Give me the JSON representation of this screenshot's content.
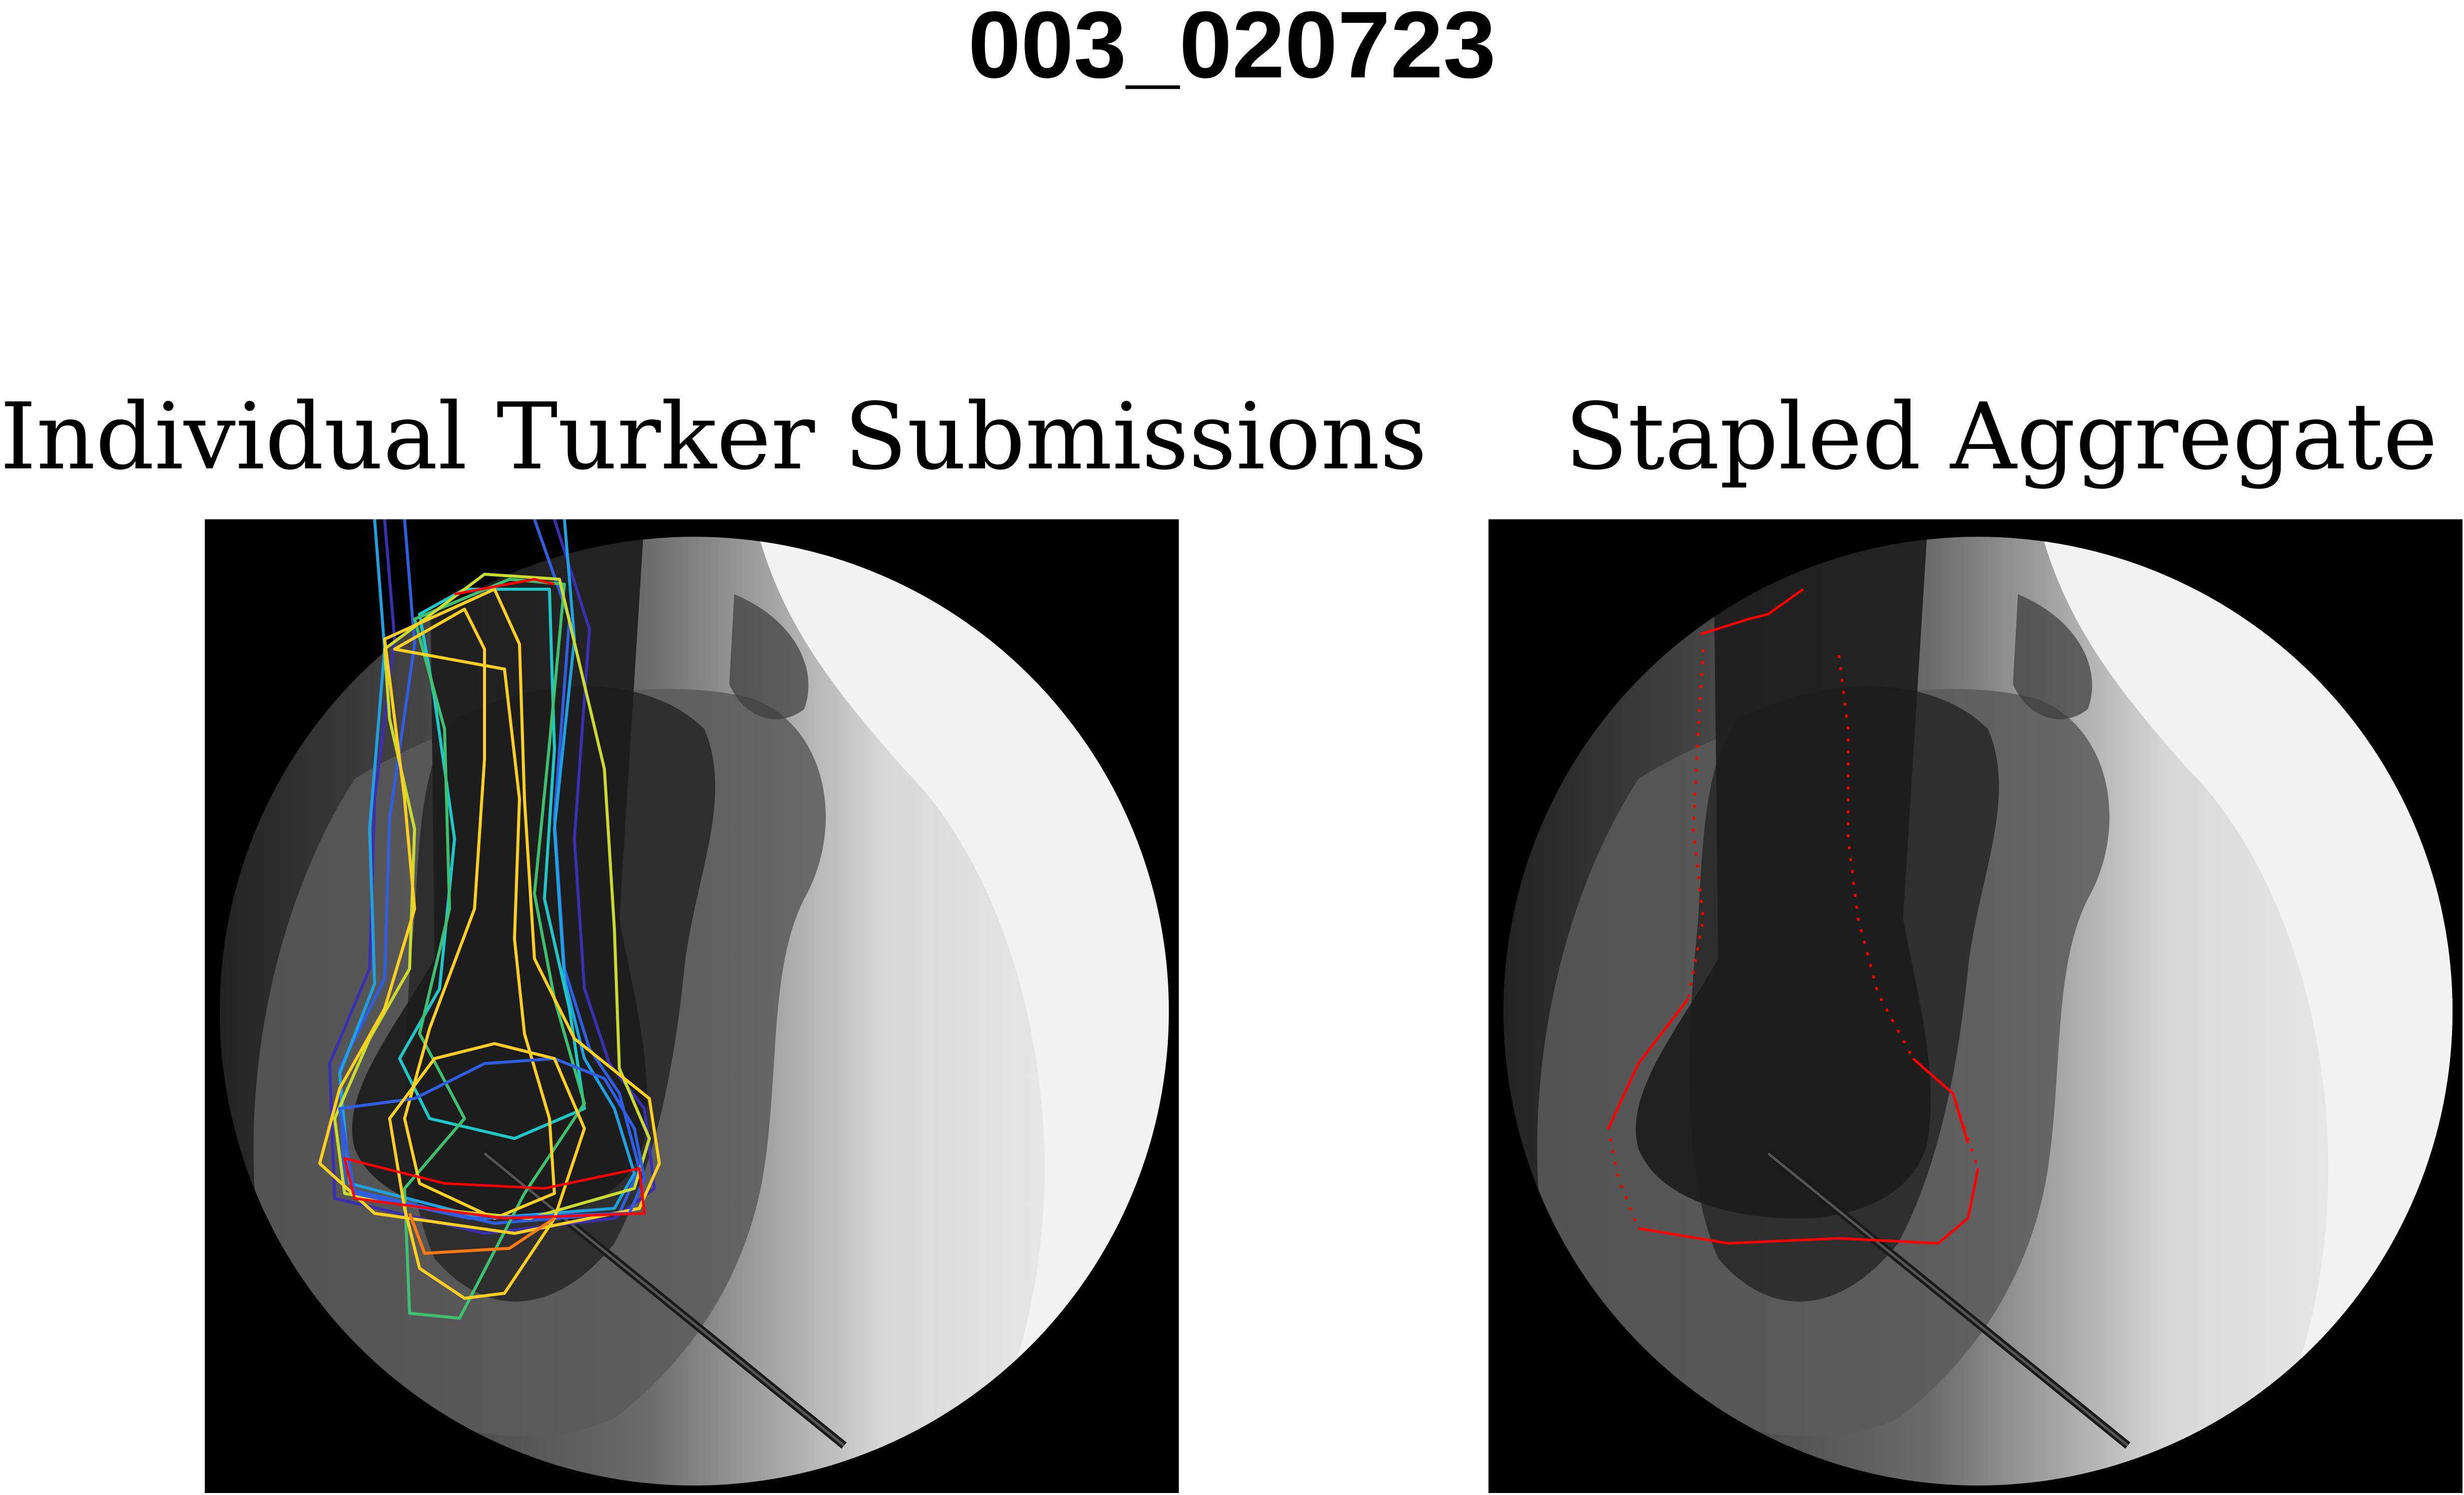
{
  "figure": {
    "title": "003_020723"
  },
  "panels": [
    {
      "id": "left",
      "title": "Individual Turker Submissions",
      "overlay": "multi-color crowd segmentation outlines"
    },
    {
      "id": "right",
      "title": "Stapled Aggregate",
      "overlay": "red aggregate outline"
    }
  ],
  "colors": {
    "background": "#000000",
    "field": "#f2f2f2",
    "aggregate_outline": "#ff0000",
    "submission_palette": [
      "#3b2fb0",
      "#2f5fe0",
      "#1fa0e0",
      "#1fc8c8",
      "#3fc070",
      "#c8dc30",
      "#ffd020",
      "#ff7a10",
      "#ff0000"
    ]
  }
}
